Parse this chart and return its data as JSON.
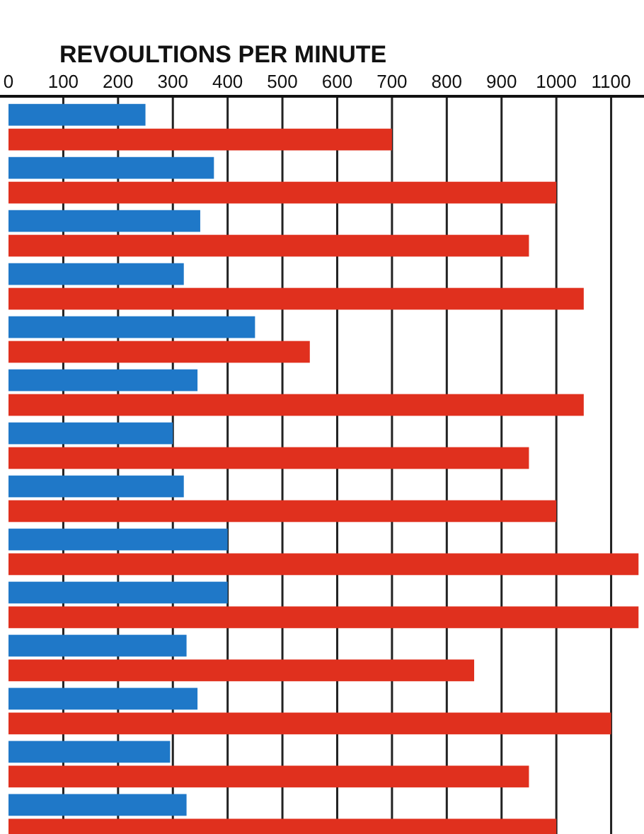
{
  "chart_data": {
    "type": "bar",
    "orientation": "horizontal",
    "title": "REVOULTIONS PER MINUTE",
    "categories": [
      null,
      null,
      null,
      null,
      null,
      null,
      null,
      null,
      null,
      null,
      null,
      null,
      null,
      null
    ],
    "series": [
      {
        "color": "#1f78c8",
        "values": [
          250,
          375,
          350,
          320,
          450,
          345,
          300,
          320,
          400,
          400,
          325,
          345,
          295,
          325
        ]
      },
      {
        "color": "#e0301e",
        "values": [
          700,
          1000,
          950,
          1050,
          550,
          1050,
          950,
          1000,
          1150,
          1150,
          850,
          1100,
          950,
          1000
        ]
      }
    ],
    "xlim": [
      0,
      1160
    ],
    "xticks": [
      0,
      100,
      200,
      300,
      400,
      500,
      600,
      700,
      800,
      900,
      1000,
      1100
    ],
    "grid": "x"
  }
}
